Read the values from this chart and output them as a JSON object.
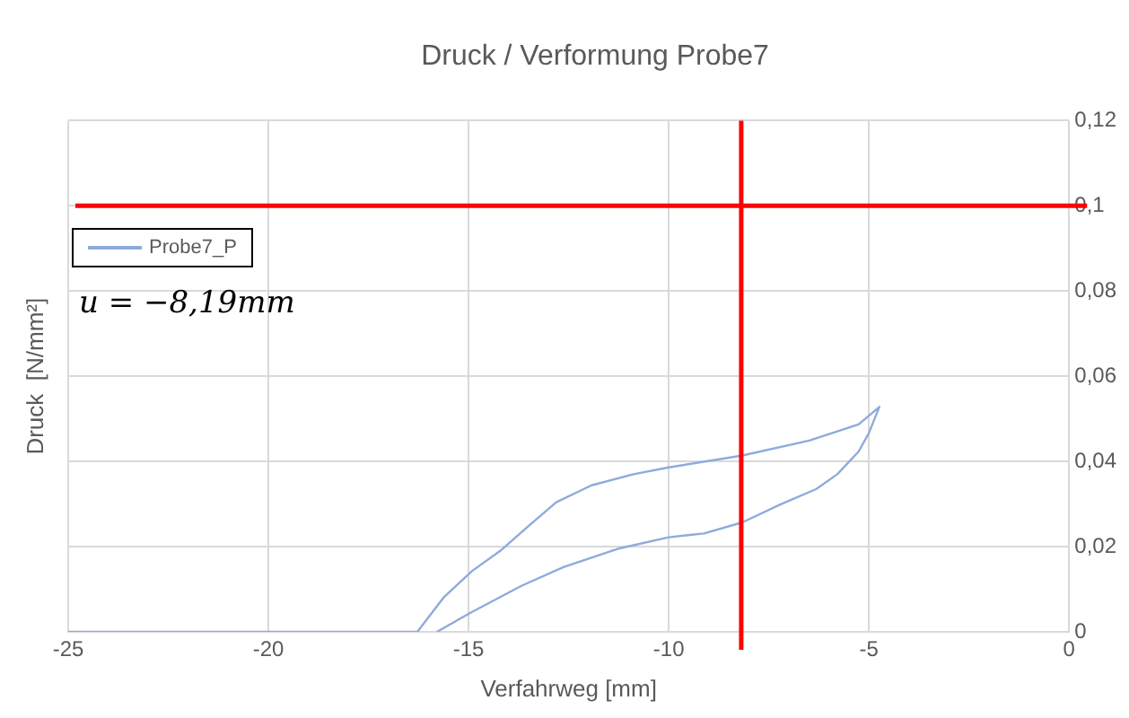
{
  "chart_data": {
    "type": "line",
    "title": "Druck / Verformung Probe7",
    "xlabel": "Verfahrweg [mm]",
    "ylabel": "Druck  [N/mm²]",
    "annotations": [
      "u = −8,19mm"
    ],
    "x": [
      -25,
      -20,
      -16.28,
      -15.61,
      -14.91,
      -14.21,
      -13.51,
      -12.81,
      -11.93,
      -10.88,
      -10,
      -8.16,
      -6.49,
      -5.26,
      -4.74,
      -5,
      -5.26,
      -5.79,
      -6.32,
      -7.19,
      -8.16,
      -9.12,
      -10,
      -11.23,
      -12.63,
      -13.68,
      -14.91,
      -15.79
    ],
    "series": [
      {
        "name": "Probe7_P",
        "color": "#8faadc",
        "values": [
          0,
          0,
          0,
          0.0082,
          0.0143,
          0.019,
          0.0248,
          0.0304,
          0.0344,
          0.037,
          0.0386,
          0.0414,
          0.0449,
          0.0487,
          0.0528,
          0.0467,
          0.0423,
          0.037,
          0.0335,
          0.03,
          0.0257,
          0.0231,
          0.0222,
          0.0196,
          0.0152,
          0.0108,
          0.0047,
          0
        ]
      }
    ],
    "xlim": [
      -25,
      0
    ],
    "xticks": [
      -25,
      -20,
      -15,
      -10,
      -5,
      0
    ],
    "ylim": [
      0,
      0.12
    ],
    "yticks": [
      0,
      {
        "value": 0.02,
        "label": "0,02"
      },
      {
        "value": 0.04,
        "label": "0,04"
      },
      {
        "value": 0.06,
        "label": "0,06"
      },
      {
        "value": 0.08,
        "label": "0,08"
      },
      {
        "value": 0.1,
        "label": "0,1"
      },
      {
        "value": 0.12,
        "label": "0,12"
      }
    ],
    "ref_lines": [
      {
        "axis": "y",
        "value": 0.1,
        "color": "#ff0000"
      },
      {
        "axis": "x",
        "value": -8.19,
        "color": "#ff0000"
      }
    ],
    "grid": true,
    "legend": "top left",
    "marker": "none",
    "line_style": "solid"
  }
}
